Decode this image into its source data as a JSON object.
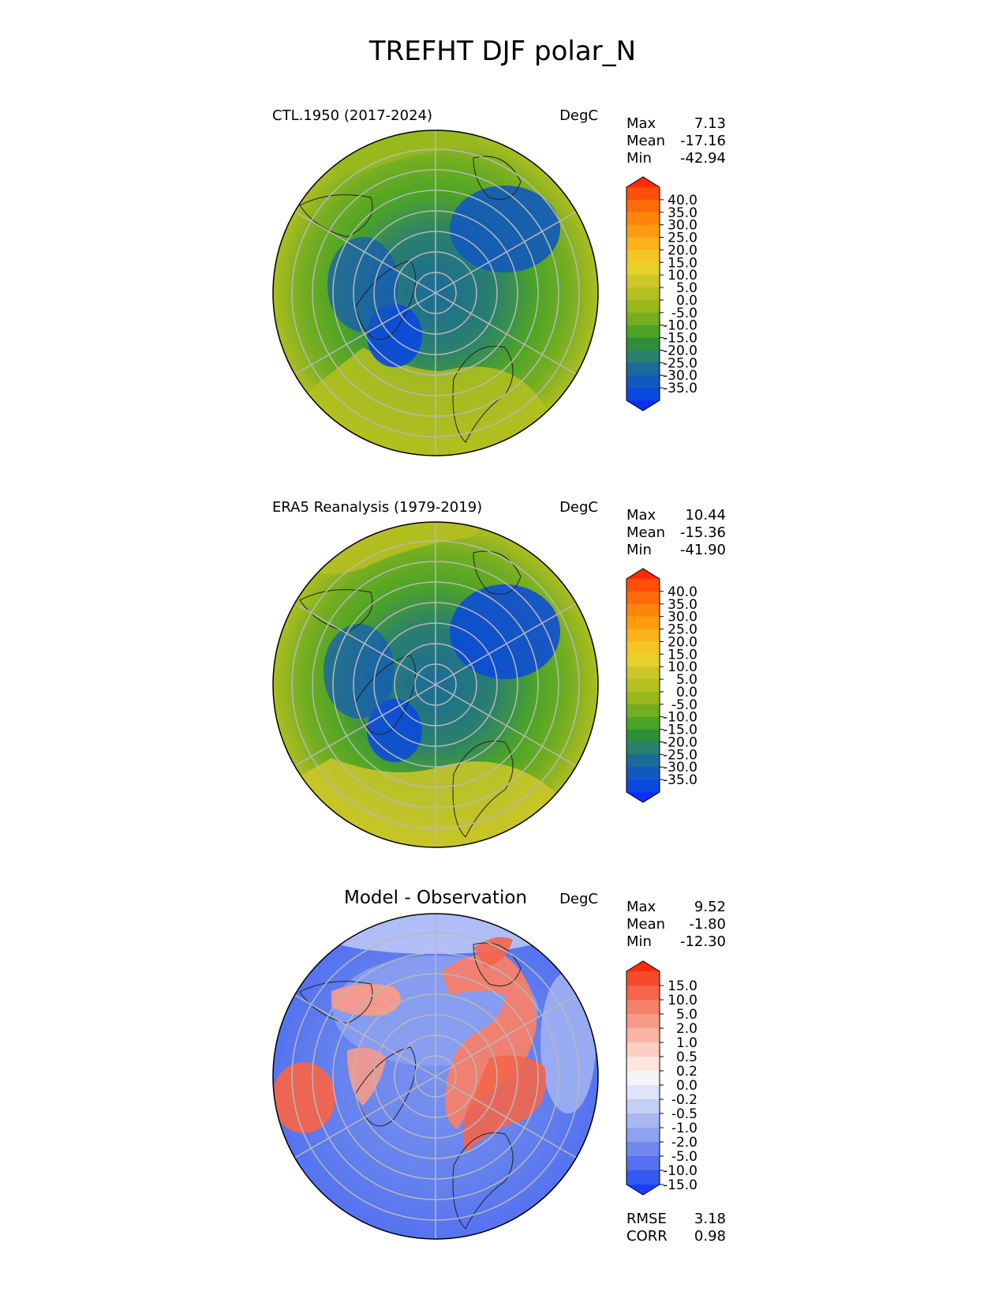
{
  "title": "TREFHT DJF polar_N",
  "panels": [
    {
      "left_title": "CTL.1950 (2017-2024)",
      "center_title": "",
      "units": "DegC",
      "stats": [
        {
          "label": "Max",
          "value": "7.13"
        },
        {
          "label": "Mean",
          "value": "-17.16"
        },
        {
          "label": "Min",
          "value": "-42.94"
        }
      ],
      "colorbar": {
        "labels": [
          "40.0",
          "35.0",
          "30.0",
          "25.0",
          "20.0",
          "15.0",
          "10.0",
          "5.0",
          "0.0",
          "-5.0",
          "-10.0",
          "-15.0",
          "-20.0",
          "-25.0",
          "-30.0",
          "-35.0"
        ],
        "colors": [
          "#fe2a0a",
          "#ff4d0a",
          "#ff6a0a",
          "#ff840b",
          "#ff9b10",
          "#fab21a",
          "#f3c624",
          "#e7d02a",
          "#cdc72a",
          "#b5bf20",
          "#98b81c",
          "#73ae21",
          "#4da426",
          "#2e8f3a",
          "#2a7f6e",
          "#1a6b9a",
          "#1259bd",
          "#0a48e0",
          "#0a30f6"
        ]
      }
    },
    {
      "left_title": "ERA5 Reanalysis (1979-2019)",
      "center_title": "",
      "units": "DegC",
      "stats": [
        {
          "label": "Max",
          "value": "10.44"
        },
        {
          "label": "Mean",
          "value": "-15.36"
        },
        {
          "label": "Min",
          "value": "-41.90"
        }
      ],
      "colorbar": {
        "labels": [
          "40.0",
          "35.0",
          "30.0",
          "25.0",
          "20.0",
          "15.0",
          "10.0",
          "5.0",
          "0.0",
          "-5.0",
          "-10.0",
          "-15.0",
          "-20.0",
          "-25.0",
          "-30.0",
          "-35.0"
        ],
        "colors": [
          "#fe2a0a",
          "#ff4d0a",
          "#ff6a0a",
          "#ff840b",
          "#ff9b10",
          "#fab21a",
          "#f3c624",
          "#e7d02a",
          "#cdc72a",
          "#b5bf20",
          "#98b81c",
          "#73ae21",
          "#4da426",
          "#2e8f3a",
          "#2a7f6e",
          "#1a6b9a",
          "#1259bd",
          "#0a48e0",
          "#0a30f6"
        ]
      }
    },
    {
      "left_title": "",
      "center_title": "Model - Observation",
      "units": "DegC",
      "stats": [
        {
          "label": "Max",
          "value": "9.52"
        },
        {
          "label": "Mean",
          "value": "-1.80"
        },
        {
          "label": "Min",
          "value": "-12.30"
        }
      ],
      "extra_stats": [
        {
          "label": "RMSE",
          "value": "3.18"
        },
        {
          "label": "CORR",
          "value": "0.98"
        }
      ],
      "colorbar": {
        "labels": [
          "15.0",
          "10.0",
          "5.0",
          "2.0",
          "1.0",
          "0.5",
          "0.2",
          "0.0",
          "-0.2",
          "-0.5",
          "-1.0",
          "-2.0",
          "-5.0",
          "-10.0",
          "-15.0"
        ],
        "colors": [
          "#ff2a0a",
          "#f44a2a",
          "#f4654a",
          "#f6806a",
          "#f89a88",
          "#fab4a6",
          "#fccec4",
          "#fde6e0",
          "#f4f4f6",
          "#dfe4f8",
          "#c4cff6",
          "#a8b8f2",
          "#8ea2f0",
          "#7088ee",
          "#5470f0",
          "#3458f2",
          "#1a3ef8"
        ]
      }
    }
  ],
  "chart_data": [
    {
      "type": "heatmap",
      "title": "CTL.1950 (2017-2024)",
      "variable": "TREFHT",
      "season": "DJF",
      "region": "polar_N",
      "units": "DegC",
      "stats": {
        "max": 7.13,
        "mean": -17.16,
        "min": -42.94
      },
      "levels": [
        -35,
        -30,
        -25,
        -20,
        -15,
        -10,
        -5,
        0,
        5,
        10,
        15,
        20,
        25,
        30,
        35,
        40
      ]
    },
    {
      "type": "heatmap",
      "title": "ERA5 Reanalysis (1979-2019)",
      "variable": "TREFHT",
      "season": "DJF",
      "region": "polar_N",
      "units": "DegC",
      "stats": {
        "max": 10.44,
        "mean": -15.36,
        "min": -41.9
      },
      "levels": [
        -35,
        -30,
        -25,
        -20,
        -15,
        -10,
        -5,
        0,
        5,
        10,
        15,
        20,
        25,
        30,
        35,
        40
      ]
    },
    {
      "type": "heatmap",
      "title": "Model - Observation",
      "units": "DegC",
      "stats": {
        "max": 9.52,
        "mean": -1.8,
        "min": -12.3,
        "rmse": 3.18,
        "corr": 0.98
      },
      "levels": [
        -15,
        -10,
        -5,
        -2,
        -1,
        -0.5,
        -0.2,
        0,
        0.2,
        0.5,
        1,
        2,
        5,
        10,
        15
      ]
    }
  ]
}
